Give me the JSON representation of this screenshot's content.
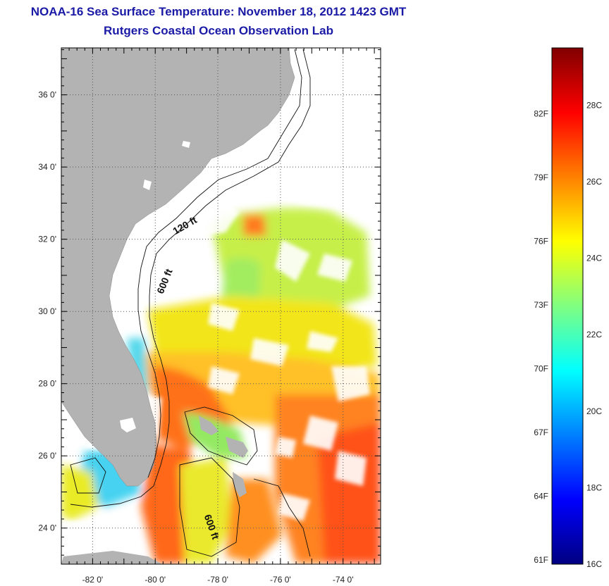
{
  "header": {
    "title": "NOAA-16 Sea Surface Temperature:  November 18, 2012 1423 GMT",
    "subtitle": "Rutgers Coastal Ocean Observation Lab"
  },
  "map": {
    "lat_ticks": [
      "24 0'",
      "26 0'",
      "28 0'",
      "30 0'",
      "32 0'",
      "34 0'",
      "36 0'"
    ],
    "lat_values": [
      24,
      26,
      28,
      30,
      32,
      34,
      36
    ],
    "lon_ticks": [
      "-82 0'",
      "-80 0'",
      "-78 0'",
      "-76 0'",
      "-74 0'"
    ],
    "lon_values": [
      -82,
      -80,
      -78,
      -76,
      -74
    ],
    "lon_range": [
      -83.0,
      -72.8
    ],
    "lat_range": [
      23.0,
      37.3
    ],
    "contour_labels": [
      {
        "text": "120 ft",
        "lon": -79.0,
        "lat": 32.3,
        "rotate": -30
      },
      {
        "text": "600 ft",
        "lon": -79.6,
        "lat": 30.8,
        "rotate": -68
      },
      {
        "text": "600 ft",
        "lon": -78.3,
        "lat": 24.0,
        "rotate": 70
      }
    ],
    "colors": {
      "land": "#b3b3b3",
      "cloud": "#ffffff",
      "contour": "#111111"
    }
  },
  "colorbar": {
    "fahrenheit_labels": [
      "82F",
      "79F",
      "76F",
      "73F",
      "70F",
      "67F",
      "64F",
      "61F"
    ],
    "fahrenheit_values": [
      82,
      79,
      76,
      73,
      70,
      67,
      64,
      61
    ],
    "celsius_labels": [
      "28C",
      "26C",
      "24C",
      "22C",
      "20C",
      "18C",
      "16C"
    ],
    "celsius_values": [
      28,
      26,
      24,
      22,
      20,
      18,
      16
    ],
    "range_celsius": [
      16,
      29.5
    ],
    "stops": [
      "#000080",
      "#0000ff",
      "#0080ff",
      "#00ffff",
      "#80ff80",
      "#ffff00",
      "#ff8000",
      "#ff0000",
      "#800000"
    ]
  }
}
